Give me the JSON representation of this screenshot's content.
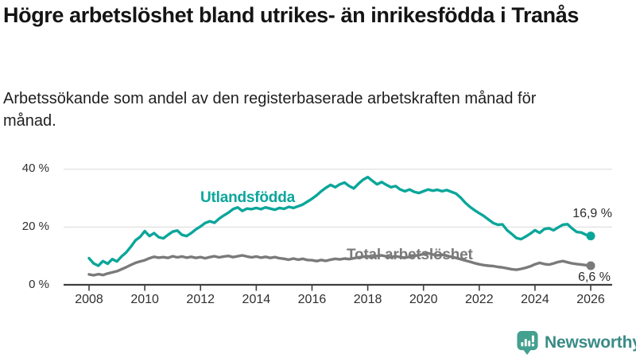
{
  "header": {
    "title": "Högre arbetslöshet bland utrikes- än inrikesfödda i Tranås",
    "subtitle": "Arbetssökande som andel av den registerbaserade arbetskraften månad för månad."
  },
  "chart_data": {
    "type": "line",
    "title": "Högre arbetslöshet bland utrikes- än inrikesfödda i Tranås",
    "subtitle": "Arbetssökande som andel av den registerbaserade arbetskraften månad för månad.",
    "x_start_year": 2008,
    "x_step_months": 2,
    "x_ticks": [
      "2008",
      "2010",
      "2012",
      "2014",
      "2016",
      "2018",
      "2020",
      "2022",
      "2024",
      "2026"
    ],
    "y_ticks": [
      {
        "value": 0,
        "label": "0 %"
      },
      {
        "value": 20,
        "label": "20 %"
      },
      {
        "value": 40,
        "label": "40 %"
      }
    ],
    "ylim": [
      0,
      44
    ],
    "grid": "horizontal",
    "grid_color": "#d9d9d9",
    "axis_color": "#3f3f3f",
    "legend_position": "inline-labels",
    "series": [
      {
        "name": "Utlandsfödda",
        "color": "#0ba69a",
        "end_label": "16,9 %",
        "end_value": 16.9,
        "values": [
          9.2,
          7.4,
          6.6,
          8.2,
          7.3,
          8.9,
          8.1,
          9.8,
          11.2,
          13.2,
          15.4,
          16.6,
          18.6,
          16.9,
          17.9,
          16.5,
          16.1,
          17.3,
          18.4,
          18.8,
          17.3,
          16.9,
          17.9,
          19.2,
          20.2,
          21.4,
          22.0,
          21.5,
          22.9,
          24.0,
          25.0,
          26.2,
          26.8,
          25.6,
          26.4,
          26.2,
          26.6,
          26.2,
          26.8,
          26.4,
          26.0,
          26.6,
          26.3,
          27.0,
          26.6,
          27.2,
          27.8,
          28.8,
          29.8,
          31.0,
          32.4,
          33.6,
          34.6,
          33.8,
          34.8,
          35.4,
          34.2,
          33.4,
          35.0,
          36.4,
          37.3,
          36.0,
          34.8,
          35.6,
          34.6,
          33.8,
          34.2,
          33.0,
          32.4,
          33.0,
          32.2,
          31.8,
          32.4,
          33.0,
          32.6,
          32.9,
          32.4,
          32.8,
          32.2,
          31.6,
          30.2,
          28.4,
          27.0,
          25.8,
          24.8,
          23.8,
          22.6,
          21.4,
          20.8,
          20.9,
          18.9,
          17.6,
          16.2,
          15.8,
          16.7,
          17.7,
          18.9,
          18.0,
          19.3,
          19.6,
          18.9,
          19.9,
          20.8,
          21.0,
          19.5,
          18.3,
          18.1,
          17.3,
          16.9
        ]
      },
      {
        "name": "Total arbetslöshet",
        "color": "#7a7a7a",
        "end_label": "6,6 %",
        "end_value": 6.6,
        "values": [
          3.6,
          3.3,
          3.7,
          3.4,
          3.9,
          4.3,
          4.7,
          5.4,
          6.1,
          6.9,
          7.6,
          8.1,
          8.5,
          9.2,
          9.7,
          9.4,
          9.6,
          9.3,
          9.9,
          9.5,
          9.8,
          9.4,
          9.7,
          9.3,
          9.6,
          9.2,
          9.6,
          9.9,
          9.5,
          9.8,
          10.0,
          9.6,
          9.9,
          10.2,
          9.8,
          9.5,
          9.8,
          9.4,
          9.7,
          9.3,
          9.6,
          9.2,
          9.0,
          8.7,
          9.1,
          8.7,
          9.0,
          8.6,
          8.5,
          8.2,
          8.6,
          8.3,
          8.7,
          9.0,
          8.8,
          9.1,
          8.9,
          9.2,
          9.5,
          9.7,
          9.9,
          9.6,
          10.0,
          10.2,
          9.8,
          9.6,
          9.9,
          9.6,
          9.4,
          9.7,
          10.0,
          10.3,
          10.6,
          10.9,
          10.5,
          10.2,
          10.4,
          10.0,
          9.7,
          9.3,
          8.9,
          8.4,
          8.0,
          7.5,
          7.1,
          6.8,
          6.6,
          6.5,
          6.2,
          6.0,
          5.7,
          5.4,
          5.2,
          5.5,
          5.9,
          6.4,
          7.1,
          7.6,
          7.2,
          7.0,
          7.4,
          7.9,
          8.2,
          7.8,
          7.4,
          7.2,
          7.0,
          6.8,
          6.6
        ]
      }
    ]
  },
  "branding": {
    "logo_text": "Newsworthy",
    "logo_text_color": "#3a8b86",
    "icon_color": "#44a08f",
    "icon_name": "newsworthy-chart-bubble-icon"
  }
}
